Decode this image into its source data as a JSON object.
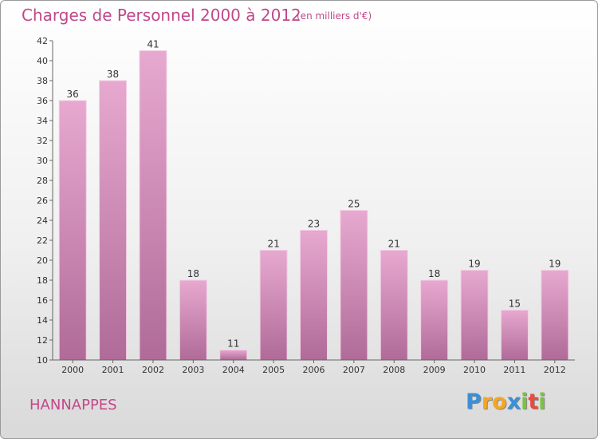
{
  "chart_data": {
    "type": "bar",
    "title": "Charges de Personnel 2000 à 2012",
    "subtitle": "(en milliers d'€)",
    "categories": [
      "2000",
      "2001",
      "2002",
      "2003",
      "2004",
      "2005",
      "2006",
      "2007",
      "2008",
      "2009",
      "2010",
      "2011",
      "2012"
    ],
    "values": [
      36,
      38,
      41,
      18,
      11,
      21,
      23,
      25,
      21,
      18,
      19,
      15,
      19
    ],
    "ylim": [
      10,
      42
    ],
    "yticks": [
      10,
      12,
      14,
      16,
      18,
      20,
      22,
      24,
      26,
      28,
      30,
      32,
      34,
      36,
      38,
      40,
      42
    ],
    "xlabel": "",
    "ylabel": "",
    "grid": false,
    "bar_color": "#d98fbd"
  },
  "commune": "HANNAPPES",
  "logo": {
    "letters": [
      "P",
      "r",
      "o",
      "x",
      "i",
      "t",
      "i"
    ],
    "colors": [
      "#3b8fd8",
      "#f5a623",
      "#f5a623",
      "#3b8fd8",
      "#7cc242",
      "#e84c3d",
      "#7cc242"
    ]
  }
}
